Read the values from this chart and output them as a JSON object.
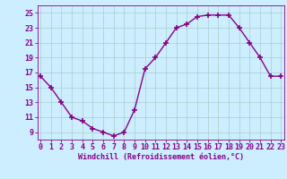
{
  "x": [
    0,
    1,
    2,
    3,
    4,
    5,
    6,
    7,
    8,
    9,
    10,
    11,
    12,
    13,
    14,
    15,
    16,
    17,
    18,
    19,
    20,
    21,
    22,
    23
  ],
  "y": [
    16.5,
    15.0,
    13.0,
    11.0,
    10.5,
    9.5,
    9.0,
    8.5,
    9.0,
    12.0,
    17.5,
    19.0,
    21.0,
    23.0,
    23.5,
    24.5,
    24.7,
    24.7,
    24.7,
    23.0,
    21.0,
    19.0,
    16.5,
    16.5
  ],
  "line_color": "#880088",
  "marker": "+",
  "marker_size": 4,
  "marker_linewidth": 1.2,
  "line_width": 1.0,
  "background_color": "#cceeff",
  "grid_color": "#aacccc",
  "xlabel": "Windchill (Refroidissement éolien,°C)",
  "xlabel_fontsize": 6.0,
  "tick_fontsize": 6.0,
  "ylim": [
    8.0,
    26.0
  ],
  "yticks": [
    9,
    11,
    13,
    15,
    17,
    19,
    21,
    23,
    25
  ],
  "xticks": [
    0,
    1,
    2,
    3,
    4,
    5,
    6,
    7,
    8,
    9,
    10,
    11,
    12,
    13,
    14,
    15,
    16,
    17,
    18,
    19,
    20,
    21,
    22,
    23
  ],
  "xlim": [
    -0.3,
    23.3
  ]
}
